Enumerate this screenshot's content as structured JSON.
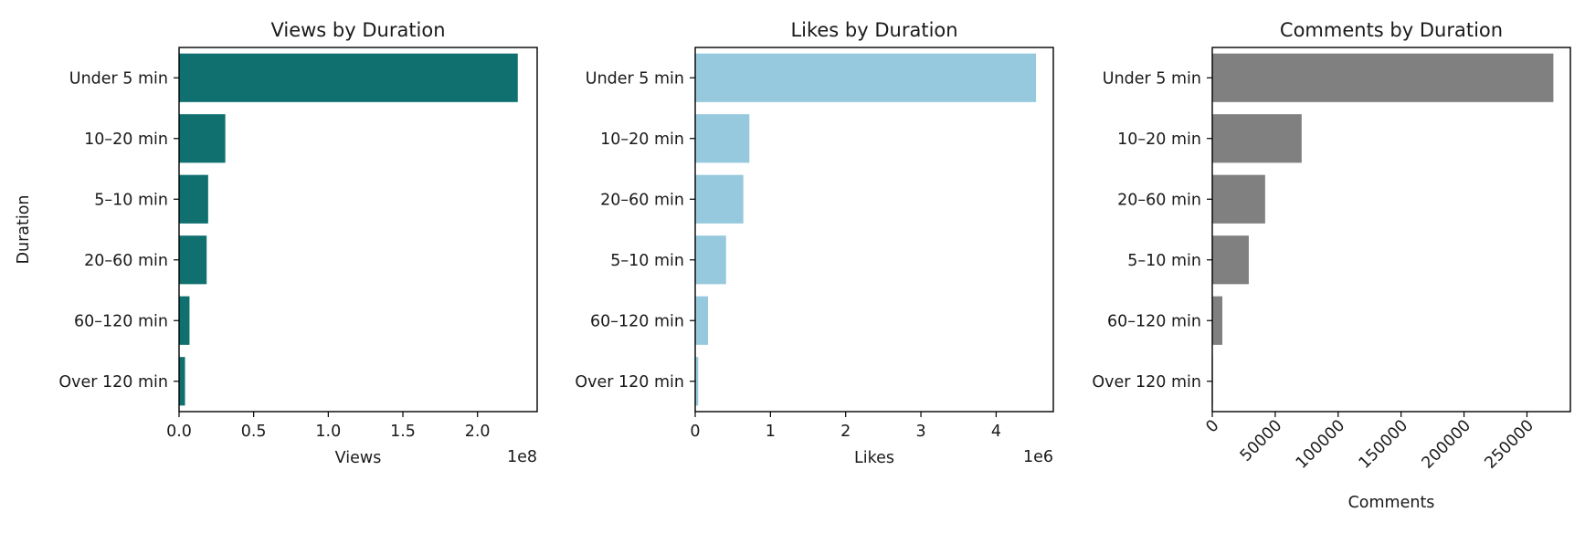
{
  "chart_data": [
    {
      "type": "bar",
      "orientation": "horizontal",
      "title": "Views by Duration",
      "xlabel": "Views",
      "ylabel": "Duration",
      "categories": [
        "Under 5 min",
        "10–20 min",
        "5–10 min",
        "20–60 min",
        "60–120 min",
        "Over 120 min"
      ],
      "values": [
        227000000,
        31000000,
        19500000,
        18500000,
        7000000,
        4000000
      ],
      "xlim": [
        0,
        240000000
      ],
      "xticks": [
        0,
        50000000,
        100000000,
        150000000,
        200000000
      ],
      "xtick_labels": [
        "0.0",
        "0.5",
        "1.0",
        "1.5",
        "2.0"
      ],
      "offset_text": "1e8",
      "color": "#107070",
      "grid": false
    },
    {
      "type": "bar",
      "orientation": "horizontal",
      "title": "Likes by Duration",
      "xlabel": "Likes",
      "ylabel": "",
      "categories": [
        "Under 5 min",
        "10–20 min",
        "20–60 min",
        "5–10 min",
        "60–120 min",
        "Over 120 min"
      ],
      "values": [
        4530000,
        720000,
        640000,
        410000,
        170000,
        40000
      ],
      "xlim": [
        0,
        4760000
      ],
      "xticks": [
        0,
        1000000,
        2000000,
        3000000,
        4000000
      ],
      "xtick_labels": [
        "0",
        "1",
        "2",
        "3",
        "4"
      ],
      "offset_text": "1e6",
      "color": "#96c9de",
      "grid": false
    },
    {
      "type": "bar",
      "orientation": "horizontal",
      "title": "Comments by Duration",
      "xlabel": "Comments",
      "ylabel": "",
      "categories": [
        "Under 5 min",
        "10–20 min",
        "20–60 min",
        "5–10 min",
        "60–120 min",
        "Over 120 min"
      ],
      "values": [
        271000,
        71000,
        42000,
        29000,
        8000,
        500
      ],
      "xlim": [
        0,
        284500
      ],
      "xticks": [
        0,
        50000,
        100000,
        150000,
        200000,
        250000
      ],
      "xtick_labels": [
        "0",
        "50000",
        "100000",
        "150000",
        "200000",
        "250000"
      ],
      "xtick_rotation": 45,
      "offset_text": "",
      "color": "#808080",
      "grid": false
    }
  ]
}
